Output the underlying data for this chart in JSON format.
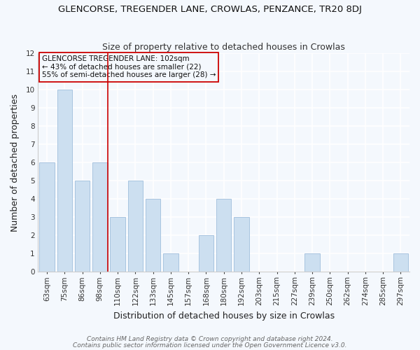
{
  "title": "GLENCORSE, TREGENDER LANE, CROWLAS, PENZANCE, TR20 8DJ",
  "subtitle": "Size of property relative to detached houses in Crowlas",
  "xlabel": "Distribution of detached houses by size in Crowlas",
  "ylabel": "Number of detached properties",
  "bar_labels": [
    "63sqm",
    "75sqm",
    "86sqm",
    "98sqm",
    "110sqm",
    "122sqm",
    "133sqm",
    "145sqm",
    "157sqm",
    "168sqm",
    "180sqm",
    "192sqm",
    "203sqm",
    "215sqm",
    "227sqm",
    "239sqm",
    "250sqm",
    "262sqm",
    "274sqm",
    "285sqm",
    "297sqm"
  ],
  "bar_values": [
    6,
    10,
    5,
    6,
    3,
    5,
    4,
    1,
    0,
    2,
    4,
    3,
    0,
    0,
    0,
    1,
    0,
    0,
    0,
    0,
    1
  ],
  "bar_color": "#ccdff0",
  "bar_edge_color": "#a8c4e0",
  "marker_index": 3,
  "marker_color": "#cc0000",
  "ylim": [
    0,
    12
  ],
  "yticks": [
    0,
    1,
    2,
    3,
    4,
    5,
    6,
    7,
    8,
    9,
    10,
    11,
    12
  ],
  "annotation_line1": "GLENCORSE TREGENDER LANE: 102sqm",
  "annotation_line2": "← 43% of detached houses are smaller (22)",
  "annotation_line3": "55% of semi-detached houses are larger (28) →",
  "footer1": "Contains HM Land Registry data © Crown copyright and database right 2024.",
  "footer2": "Contains public sector information licensed under the Open Government Licence v3.0.",
  "background_color": "#f4f8fd",
  "plot_bg_color": "#f4f8fd",
  "grid_color": "#ffffff",
  "title_fontsize": 9.5,
  "subtitle_fontsize": 9,
  "axis_label_fontsize": 9,
  "tick_fontsize": 7.5,
  "footer_fontsize": 6.5,
  "ann_fontsize": 7.5
}
